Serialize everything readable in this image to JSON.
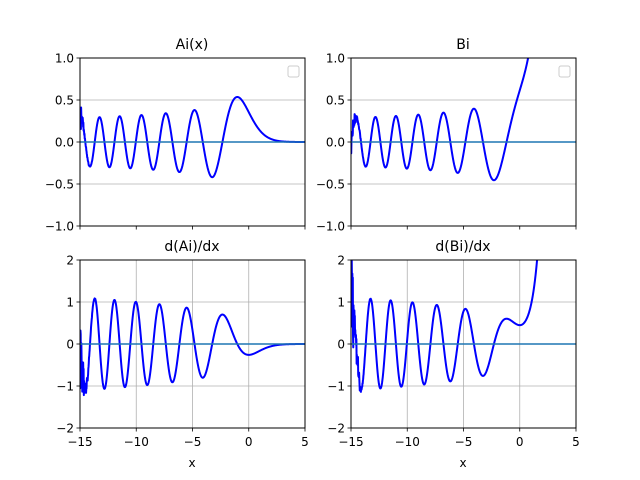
{
  "chart_data": [
    {
      "type": "line",
      "title": "Ai(x)",
      "xlabel": "",
      "ylabel": "",
      "xlim": [
        -15,
        5
      ],
      "ylim": [
        -1,
        1
      ],
      "xticks": [
        -15,
        -10,
        -5,
        0,
        5
      ],
      "yticks": [
        -1.0,
        -0.5,
        0.0,
        0.5,
        1.0
      ],
      "ytick_labels": [
        "−1.0",
        "−0.5",
        "0.0",
        "0.5",
        "1.0"
      ],
      "xtick_labels": [],
      "grid": "y",
      "legend": "upper right, empty",
      "series": [
        {
          "kind": "airy",
          "func": "ai",
          "color": "#0000ff",
          "x_range": [
            -15,
            5
          ]
        },
        {
          "kind": "hline",
          "value": 0,
          "color": "#1f77b4"
        }
      ]
    },
    {
      "type": "line",
      "title": "Bi",
      "xlabel": "",
      "ylabel": "",
      "xlim": [
        -15,
        5
      ],
      "ylim": [
        -1,
        1
      ],
      "xticks": [
        -15,
        -10,
        -5,
        0,
        5
      ],
      "yticks": [
        -1.0,
        -0.5,
        0.0,
        0.5,
        1.0
      ],
      "ytick_labels": [
        "−1.0",
        "−0.5",
        "0.0",
        "0.5",
        "1.0"
      ],
      "xtick_labels": [],
      "grid": "y",
      "legend": "upper right, empty",
      "series": [
        {
          "kind": "airy",
          "func": "bi",
          "color": "#0000ff",
          "x_range": [
            -15,
            5
          ]
        },
        {
          "kind": "hline",
          "value": 0,
          "color": "#1f77b4"
        }
      ]
    },
    {
      "type": "line",
      "title": "d(Ai)/dx",
      "xlabel": "x",
      "ylabel": "",
      "xlim": [
        -15,
        5
      ],
      "ylim": [
        -2,
        2
      ],
      "xticks": [
        -15,
        -10,
        -5,
        0,
        5
      ],
      "xtick_labels": [
        "−15",
        "−10",
        "−5",
        "0",
        "5"
      ],
      "yticks": [
        -2,
        -1,
        0,
        1,
        2
      ],
      "ytick_labels": [
        "−2",
        "−1",
        "0",
        "1",
        "2"
      ],
      "grid": "both",
      "legend": "none",
      "series": [
        {
          "kind": "airy",
          "func": "aip",
          "color": "#0000ff",
          "x_range": [
            -15,
            5
          ]
        },
        {
          "kind": "hline",
          "value": 0,
          "color": "#1f77b4"
        }
      ]
    },
    {
      "type": "line",
      "title": "d(Bi)/dx",
      "xlabel": "x",
      "ylabel": "",
      "xlim": [
        -15,
        5
      ],
      "ylim": [
        -2,
        2
      ],
      "xticks": [
        -15,
        -10,
        -5,
        0,
        5
      ],
      "xtick_labels": [
        "−15",
        "−10",
        "−5",
        "0",
        "5"
      ],
      "yticks": [
        -2,
        -1,
        0,
        1,
        2
      ],
      "ytick_labels": [
        "−2",
        "−1",
        "0",
        "1",
        "2"
      ],
      "grid": "both",
      "legend": "none",
      "series": [
        {
          "kind": "airy",
          "func": "bip",
          "color": "#0000ff",
          "x_range": [
            -15,
            5
          ]
        },
        {
          "kind": "hline",
          "value": 0,
          "color": "#1f77b4"
        }
      ]
    }
  ]
}
